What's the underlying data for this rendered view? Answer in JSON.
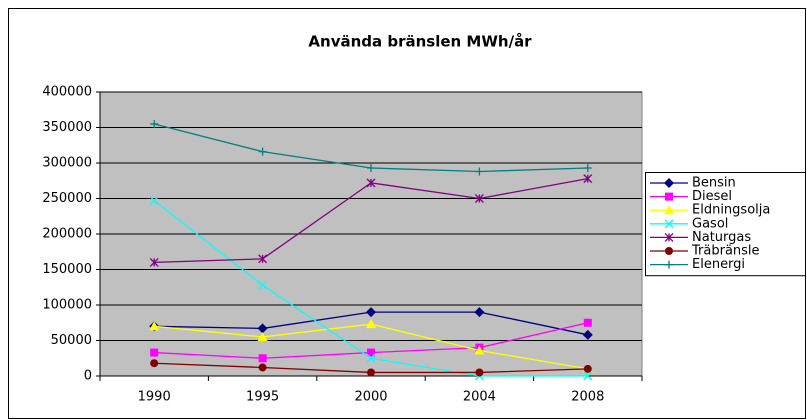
{
  "chart_data": {
    "type": "line",
    "title": "Använda bränslen MWh/år",
    "categories": [
      "1990",
      "1995",
      "2000",
      "2004",
      "2008"
    ],
    "series": [
      {
        "name": "Bensin",
        "color": "#000080",
        "marker": "diamond",
        "values": [
          70000,
          67000,
          90000,
          90000,
          58000
        ]
      },
      {
        "name": "Diesel",
        "color": "#ff00ff",
        "marker": "square",
        "values": [
          33000,
          25000,
          33000,
          40000,
          75000
        ]
      },
      {
        "name": "Eldningsolja",
        "color": "#ffff00",
        "marker": "triangle",
        "values": [
          70000,
          55000,
          73000,
          36000,
          10000
        ]
      },
      {
        "name": "Gasol",
        "color": "#00ffff",
        "marker": "x",
        "values": [
          247000,
          128000,
          25000,
          0,
          0
        ]
      },
      {
        "name": "Naturgas",
        "color": "#800080",
        "marker": "star",
        "values": [
          160000,
          165000,
          272000,
          250000,
          278000
        ]
      },
      {
        "name": "Träbränsle",
        "color": "#800000",
        "marker": "circle",
        "values": [
          18000,
          12000,
          5000,
          5000,
          10000
        ]
      },
      {
        "name": "Elenergi",
        "color": "#008080",
        "marker": "plus",
        "values": [
          355000,
          316000,
          293000,
          288000,
          293000
        ]
      }
    ],
    "ylim": [
      0,
      400000
    ],
    "yticks": [
      0,
      50000,
      100000,
      150000,
      200000,
      250000,
      300000,
      350000,
      400000
    ],
    "grid": true,
    "plot_background": "#c0c0c0",
    "legend": "right"
  }
}
